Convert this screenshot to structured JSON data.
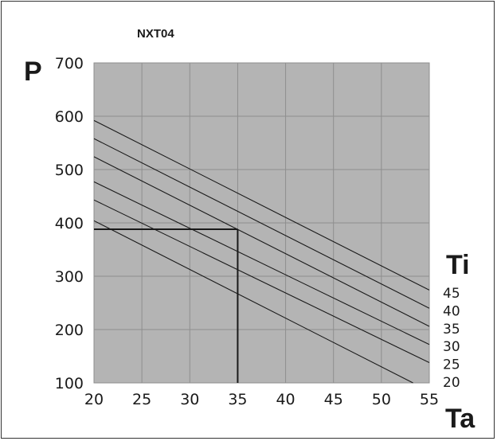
{
  "chart_data": {
    "type": "line",
    "title": "NXT04",
    "ylabel": "P",
    "xlabel": "Ta",
    "legend_title": "Ti",
    "xlim": [
      20,
      55
    ],
    "ylim": [
      100,
      700
    ],
    "xticks": [
      20,
      25,
      30,
      35,
      40,
      45,
      50,
      55
    ],
    "yticks": [
      100,
      200,
      300,
      400,
      500,
      600,
      700
    ],
    "grid": true,
    "plot_background": "#b4b4b4",
    "line_color": "#1a1a1a",
    "series": [
      {
        "name": "45",
        "x": [
          20,
          55
        ],
        "y": [
          592,
          274
        ]
      },
      {
        "name": "40",
        "x": [
          20,
          55
        ],
        "y": [
          558,
          240
        ]
      },
      {
        "name": "35",
        "x": [
          20,
          55
        ],
        "y": [
          524,
          206
        ]
      },
      {
        "name": "30",
        "x": [
          20,
          55
        ],
        "y": [
          477,
          172
        ]
      },
      {
        "name": "25",
        "x": [
          20,
          55
        ],
        "y": [
          443,
          138
        ]
      },
      {
        "name": "20",
        "x": [
          20,
          53.3
        ],
        "y": [
          404,
          100
        ]
      }
    ],
    "reference": {
      "x": 35,
      "y": 388
    }
  }
}
